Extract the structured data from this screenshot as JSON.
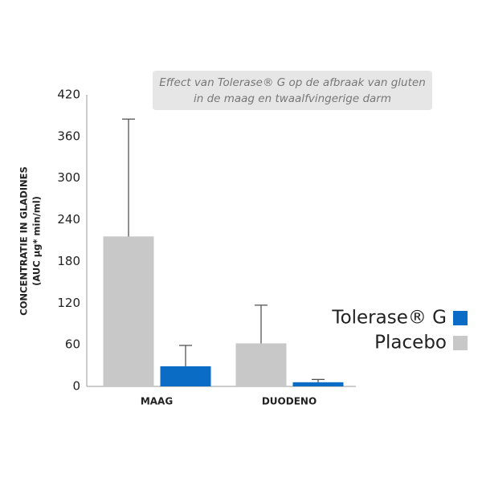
{
  "chart_data": {
    "type": "bar",
    "title": "Effect van Tolerase® G op de afbraak van gluten in de maag en twaalfvingerige darm",
    "ylabel": [
      "CONCENTRATIE IN GLADINES",
      "(AUC µg* min/ml)"
    ],
    "categories": [
      "MAAG",
      "DUODENO"
    ],
    "series": [
      {
        "name": "Placebo",
        "color": "#c8c8c8",
        "values": [
          216,
          62
        ],
        "errors": [
          169,
          55
        ]
      },
      {
        "name": "Tolerase® G",
        "color": "#0a6cc4",
        "values": [
          29,
          6
        ],
        "errors": [
          30,
          4
        ]
      }
    ],
    "ylim": [
      0,
      420
    ],
    "yticks": [
      0,
      60,
      120,
      180,
      240,
      300,
      360,
      420
    ],
    "grid": false,
    "legend": "right"
  }
}
